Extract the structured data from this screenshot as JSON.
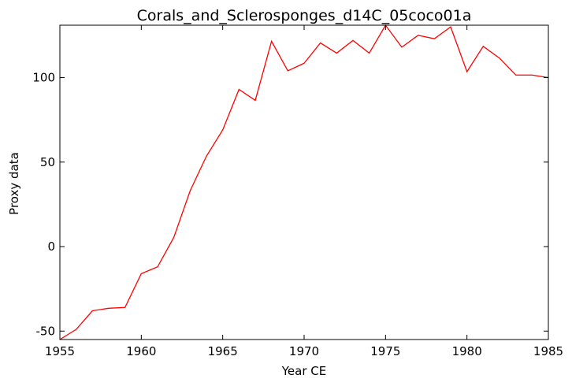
{
  "chart_data": {
    "type": "line",
    "title": "Corals_and_Sclerosponges_d14C_05coco01a",
    "xlabel": "Year CE",
    "ylabel": "Proxy data",
    "xlim": [
      1955,
      1985
    ],
    "ylim": [
      -55,
      131
    ],
    "xticks": [
      1955,
      1960,
      1965,
      1970,
      1975,
      1980,
      1985
    ],
    "yticks": [
      -50,
      0,
      50,
      100
    ],
    "grid": false,
    "series": [
      {
        "color": "#ff0000",
        "x": [
          1955,
          1956,
          1957,
          1958,
          1959,
          1960,
          1961,
          1962,
          1963,
          1964,
          1965,
          1966,
          1967,
          1968,
          1969,
          1970,
          1971,
          1972,
          1973,
          1974,
          1975,
          1976,
          1977,
          1978,
          1979,
          1980,
          1981,
          1982,
          1983,
          1984,
          1985
        ],
        "y": [
          -55,
          -49,
          -38,
          -36.5,
          -36,
          -16,
          -12,
          5.5,
          33,
          53.5,
          69,
          93,
          86.5,
          121.5,
          104,
          108.5,
          120.5,
          114.5,
          122,
          114.5,
          131,
          118,
          125,
          123,
          130,
          103.5,
          118.5,
          111.5,
          101.5,
          101.5,
          100
        ]
      }
    ]
  }
}
